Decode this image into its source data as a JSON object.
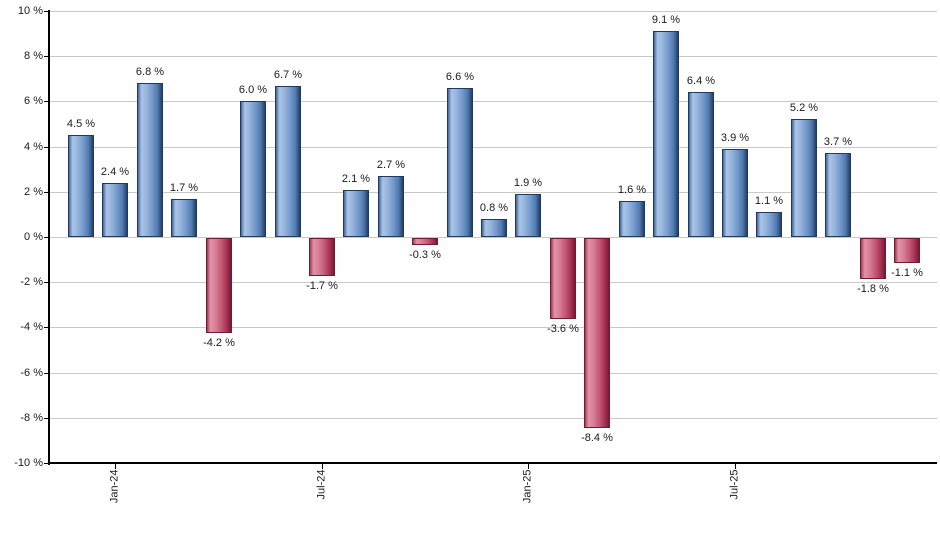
{
  "chart_data": {
    "type": "bar",
    "title": "",
    "xlabel": "",
    "ylabel": "",
    "unit": "%",
    "ylim": [
      -10,
      10
    ],
    "grid": true,
    "legend": "none",
    "values": [
      4.5,
      2.4,
      6.8,
      1.7,
      -4.2,
      6.0,
      6.7,
      -1.7,
      2.1,
      2.7,
      -0.3,
      6.6,
      0.8,
      1.9,
      -3.6,
      -8.4,
      1.6,
      9.1,
      6.4,
      3.9,
      1.1,
      5.2,
      3.7,
      -1.8,
      -1.1
    ],
    "bar_value_labels": [
      "4.5 %",
      "2.4 %",
      "6.8 %",
      "1.7 %",
      "-4.2 %",
      "6.0 %",
      "6.7 %",
      "-1.7 %",
      "2.1 %",
      "2.7 %",
      "-0.3 %",
      "6.6 %",
      "0.8 %",
      "1.9 %",
      "-3.6 %",
      "-8.4 %",
      "1.6 %",
      "9.1 %",
      "6.4 %",
      "3.9 %",
      "1.1 %",
      "5.2 %",
      "3.7 %",
      "-1.8 %",
      "-1.1 %"
    ],
    "x_ticks": [
      {
        "label": "Jan-24",
        "bar_index": 1
      },
      {
        "label": "Jul-24",
        "bar_index": 7
      },
      {
        "label": "Jan-25",
        "bar_index": 13
      },
      {
        "label": "Jul-25",
        "bar_index": 19
      }
    ],
    "y_ticks": [
      {
        "value": 10,
        "label": "10 %"
      },
      {
        "value": 8,
        "label": "8 %"
      },
      {
        "value": 6,
        "label": "6 %"
      },
      {
        "value": 4,
        "label": "4 %"
      },
      {
        "value": 2,
        "label": "2 %"
      },
      {
        "value": 0,
        "label": "0 %"
      },
      {
        "value": -2,
        "label": "-2 %"
      },
      {
        "value": -4,
        "label": "-4 %"
      },
      {
        "value": -6,
        "label": "-6 %"
      },
      {
        "value": -8,
        "label": "-8 %"
      },
      {
        "value": -10,
        "label": "-10 %"
      }
    ],
    "colors": {
      "positive_border": "#1f3a5f",
      "positive_light": "#abc5e8",
      "positive_dark": "#233f66",
      "negative_border": "#6f1b33",
      "negative_light": "#e294a9",
      "negative_dark": "#731c34",
      "gridline": "#c9c9c9",
      "axis": "#000000",
      "text": "#1a1a1a",
      "background": "#ffffff"
    }
  }
}
